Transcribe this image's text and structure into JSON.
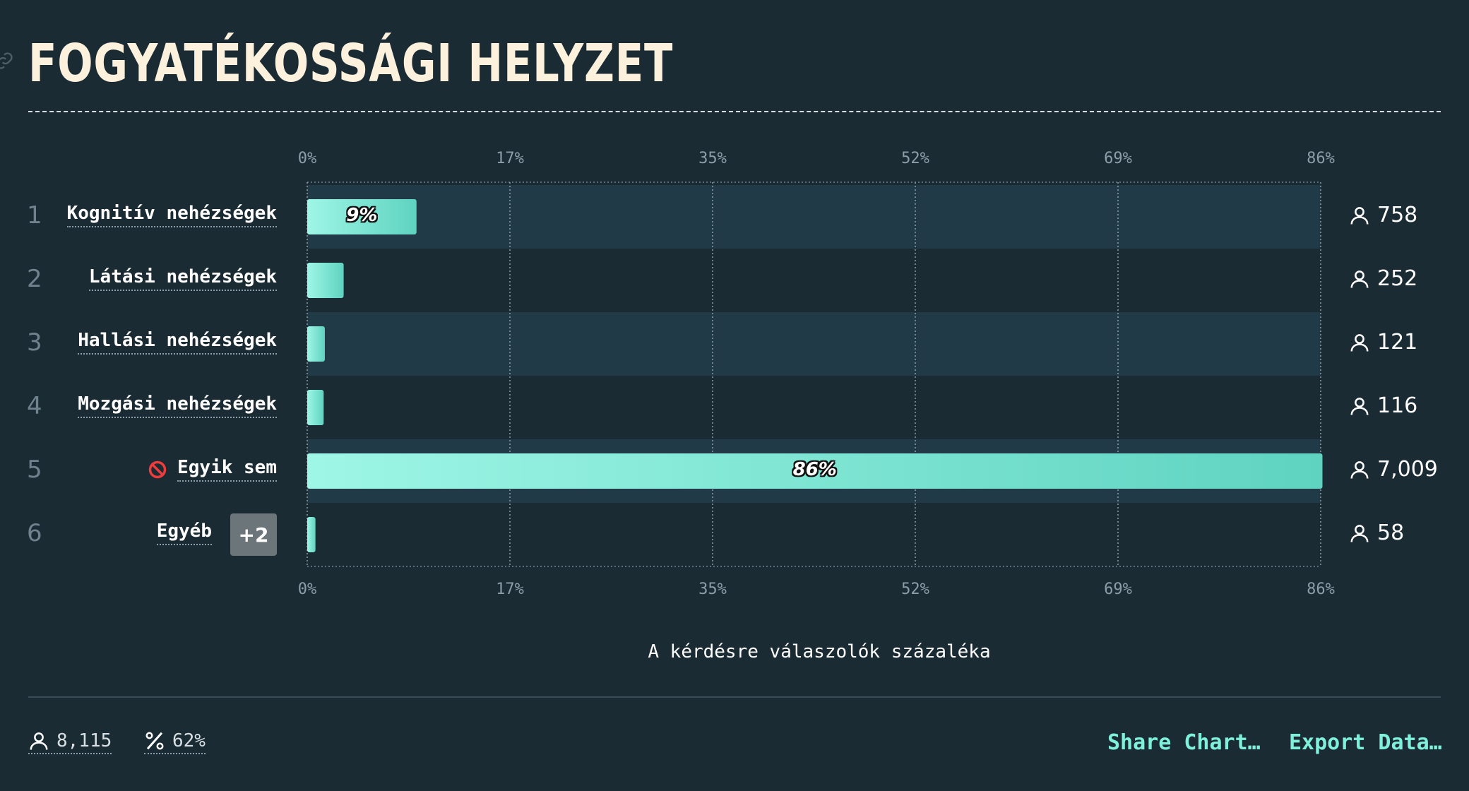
{
  "title": "FOGYATÉKOSSÁGI HELYZET",
  "chart_data": {
    "type": "bar",
    "orientation": "horizontal",
    "categories": [
      "Kognitív nehézségek",
      "Látási nehézségek",
      "Hallási nehézségek",
      "Mozgási nehézségek",
      "Egyik sem",
      "Egyéb"
    ],
    "values": [
      9.3,
      3.1,
      1.5,
      1.4,
      86.4,
      0.7
    ],
    "counts": [
      "758",
      "252",
      "121",
      "116",
      "7,009",
      "58"
    ],
    "value_labels": [
      "9%",
      "",
      "",
      "",
      "86%",
      ""
    ],
    "ranks": [
      "1",
      "2",
      "3",
      "4",
      "5",
      "6"
    ],
    "x_ticks": [
      0,
      17.25,
      34.5,
      51.75,
      69,
      86.25
    ],
    "x_tick_labels": [
      "0%",
      "17%",
      "35%",
      "52%",
      "69%",
      "86%"
    ],
    "xlim": [
      0,
      86.25
    ],
    "xlabel": "A kérdésre válaszolók százaléka",
    "grid": true,
    "colors": {
      "bar_start": "#9ef6e6",
      "bar_end": "#5fd3c0",
      "row_band": "#203a48",
      "background": "#1a2b34"
    }
  },
  "extra_badge": "+2",
  "footer": {
    "respondents": "8,115",
    "response_rate": "62%",
    "share_label": "Share Chart…",
    "export_label": "Export Data…"
  }
}
